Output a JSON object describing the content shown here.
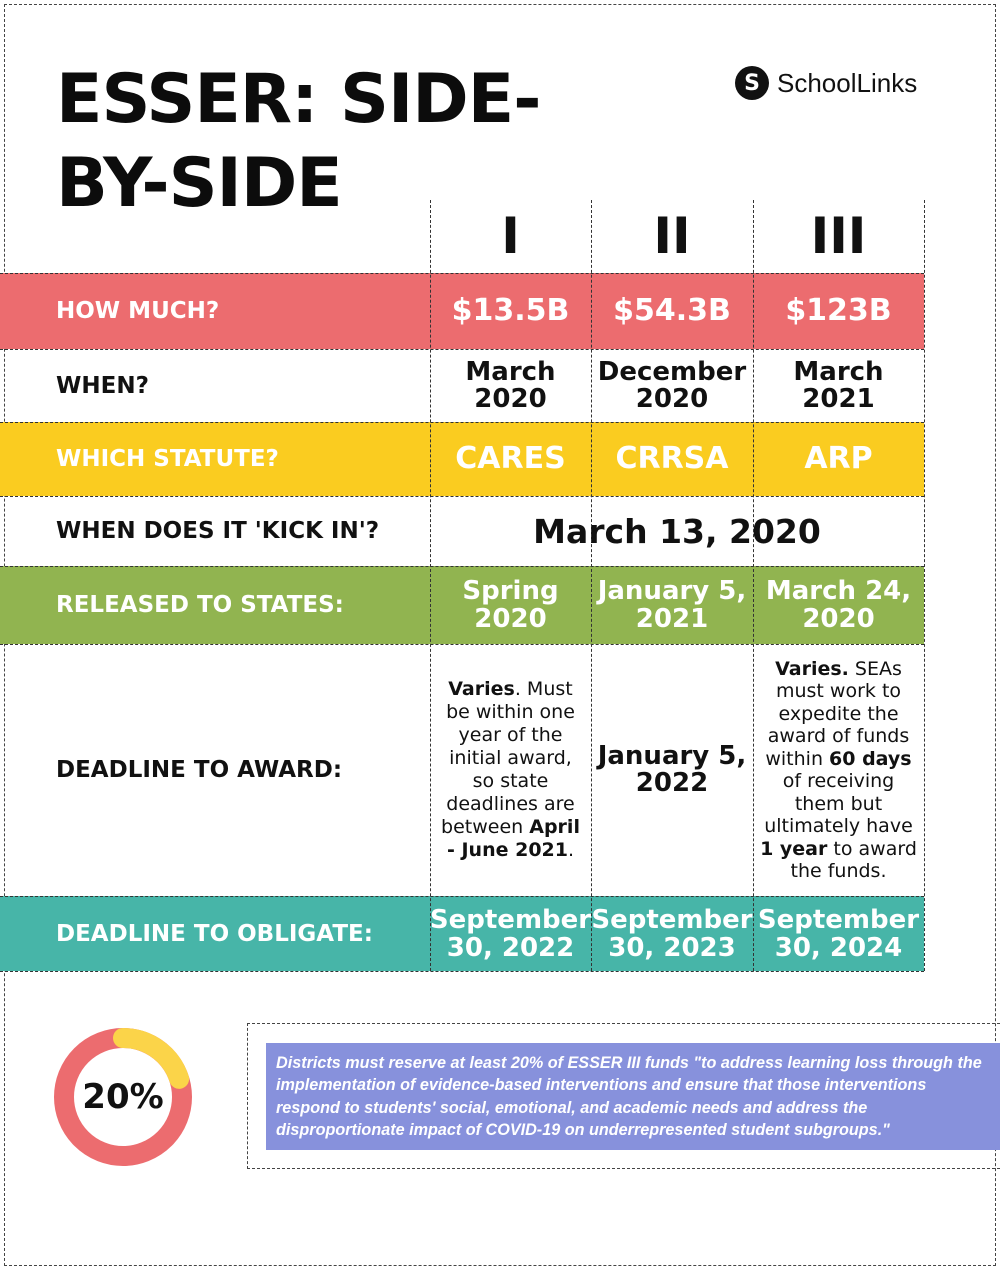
{
  "title": {
    "line1": "ESSER: SIDE-",
    "line2": "BY-SIDE"
  },
  "logo": {
    "mark": "S",
    "name": "SchoolLinks"
  },
  "columns": [
    "I",
    "II",
    "III"
  ],
  "colors": {
    "how_much": "#ec6c6f",
    "which_statute": "#facc20",
    "released": "#91b450",
    "obligate": "#47b5a8",
    "note_bg": "#8791dc",
    "donut_main": "#ec6c6f",
    "donut_accent": "#fbd449"
  },
  "rows": {
    "how_much": {
      "label": "HOW MUCH?",
      "values": [
        "$13.5B",
        "$54.3B",
        "$123B"
      ]
    },
    "when": {
      "label": "WHEN?",
      "values": [
        [
          "March",
          "2020"
        ],
        [
          "December",
          "2020"
        ],
        [
          "March",
          "2021"
        ]
      ]
    },
    "statute": {
      "label": "WHICH STATUTE?",
      "values": [
        "CARES",
        "CRRSA",
        "ARP"
      ]
    },
    "kick_in": {
      "label": "WHEN DOES IT 'KICK IN'?",
      "value": "March 13, 2020"
    },
    "released": {
      "label": "RELEASED TO STATES:",
      "values": [
        [
          "Spring",
          "2020"
        ],
        [
          "January 5,",
          "2021"
        ],
        [
          "March 24,",
          "2020"
        ]
      ]
    },
    "award": {
      "label": "DEADLINE TO AWARD:",
      "col1": {
        "bold1": "Varies",
        "text1": ". Must be within one year of the initial award, so state deadlines are between ",
        "bold2": "April - June 2021",
        "text2": "."
      },
      "col2": [
        "January 5,",
        "2022"
      ],
      "col3": {
        "bold1": "Varies.",
        "text1": " SEAs must work to expedite the award of funds within ",
        "bold2": "60 days",
        "text2": " of receiving them but ultimately have ",
        "bold3": "1 year",
        "text3": " to award the funds."
      }
    },
    "obligate": {
      "label": "DEADLINE TO OBLIGATE:",
      "values": [
        [
          "September",
          "30, 2022"
        ],
        [
          "September",
          "30, 2023"
        ],
        [
          "September",
          "30, 2024"
        ]
      ]
    }
  },
  "reserve": {
    "percent": "20%",
    "fraction": 0.2,
    "note": "Districts must reserve at least 20% of  ESSER III funds \"to address learning loss through the implementation of evidence-based interventions and ensure that those interventions respond to students' social, emotional, and academic needs and address the disproportionate impact of COVID-19 on underrepresented student subgroups.\""
  }
}
